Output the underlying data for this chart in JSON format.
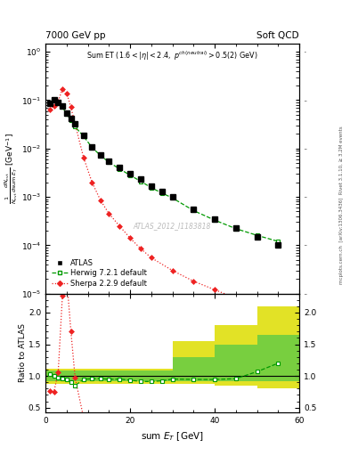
{
  "title_left": "7000 GeV pp",
  "title_right": "Soft QCD",
  "watermark": "ATLAS_2012_I1183818",
  "right_label": "Rivet 3.1.10, ≥ 3.2M events",
  "arxiv_label": "[arXiv:1306.3436]",
  "mcplots_label": "mcplots.cern.ch",
  "atlas_x": [
    1,
    2,
    3,
    4,
    5,
    6,
    7,
    9,
    11,
    13,
    15,
    17.5,
    20,
    22.5,
    25,
    27.5,
    30,
    35,
    40,
    45,
    50,
    55
  ],
  "atlas_y": [
    0.085,
    0.1,
    0.09,
    0.075,
    0.055,
    0.042,
    0.033,
    0.019,
    0.011,
    0.0075,
    0.0055,
    0.004,
    0.003,
    0.0023,
    0.0017,
    0.0013,
    0.001,
    0.00055,
    0.00035,
    0.00023,
    0.00015,
    0.0001
  ],
  "atlas_yerr": [
    0.004,
    0.004,
    0.004,
    0.003,
    0.002,
    0.002,
    0.001,
    0.001,
    0.0005,
    0.0003,
    0.0002,
    0.0002,
    0.0001,
    0.0001,
    8e-05,
    6e-05,
    5e-05,
    2.5e-05,
    1.5e-05,
    1e-05,
    6e-06,
    4e-06
  ],
  "herwig_x": [
    1,
    2,
    3,
    4,
    5,
    6,
    7,
    9,
    11,
    13,
    15,
    17.5,
    20,
    22.5,
    25,
    27.5,
    30,
    35,
    40,
    45,
    50,
    55
  ],
  "herwig_y": [
    0.088,
    0.1,
    0.088,
    0.072,
    0.052,
    0.038,
    0.028,
    0.018,
    0.0105,
    0.0072,
    0.0052,
    0.0038,
    0.0028,
    0.0021,
    0.00155,
    0.0012,
    0.00095,
    0.00052,
    0.00033,
    0.00022,
    0.00016,
    0.00012
  ],
  "sherpa_x": [
    1,
    2,
    3,
    4,
    5,
    6,
    7,
    9,
    11,
    13,
    15,
    17.5,
    20,
    22.5,
    25,
    30,
    35,
    40,
    45,
    50,
    55
  ],
  "sherpa_y": [
    0.065,
    0.075,
    0.095,
    0.17,
    0.14,
    0.072,
    0.032,
    0.0065,
    0.002,
    0.00085,
    0.00045,
    0.00025,
    0.00014,
    8.5e-05,
    5.5e-05,
    3e-05,
    1.8e-05,
    1.2e-05,
    8e-06,
    5e-06,
    3e-06
  ],
  "herwig_ratio_x": [
    1,
    2,
    3,
    4,
    5,
    6,
    7,
    9,
    11,
    13,
    15,
    17.5,
    20,
    22.5,
    25,
    27.5,
    30,
    35,
    40,
    45,
    50,
    55
  ],
  "herwig_ratio_y": [
    1.035,
    1.0,
    0.978,
    0.96,
    0.945,
    0.905,
    0.848,
    0.947,
    0.955,
    0.96,
    0.945,
    0.95,
    0.933,
    0.913,
    0.912,
    0.923,
    0.95,
    0.945,
    0.943,
    0.957,
    1.067,
    1.2
  ],
  "sherpa_ratio_x": [
    1,
    2,
    3,
    4,
    5,
    6,
    7,
    9,
    11,
    13
  ],
  "sherpa_ratio_y": [
    0.765,
    0.75,
    1.056,
    2.27,
    2.55,
    1.71,
    0.97,
    0.342,
    0.182,
    0.113
  ],
  "band_edges": [
    0,
    10,
    20,
    30,
    40,
    50,
    60
  ],
  "band_green_lo": [
    0.92,
    0.92,
    0.92,
    0.92,
    0.92,
    0.92,
    0.92
  ],
  "band_green_hi": [
    1.08,
    1.08,
    1.08,
    1.3,
    1.5,
    1.65,
    1.65
  ],
  "band_yellow_lo": [
    0.88,
    0.88,
    0.88,
    0.88,
    0.85,
    0.8,
    0.8
  ],
  "band_yellow_hi": [
    1.12,
    1.12,
    1.12,
    1.55,
    1.8,
    2.1,
    2.1
  ],
  "ylim_main": [
    1e-05,
    1.5
  ],
  "ylim_ratio": [
    0.42,
    2.3
  ],
  "xlim": [
    0,
    60
  ],
  "color_atlas": "#000000",
  "color_herwig": "#009900",
  "color_sherpa": "#ee2222",
  "color_band_green": "#66cc44",
  "color_band_yellow": "#dddd00",
  "background_color": "#ffffff"
}
